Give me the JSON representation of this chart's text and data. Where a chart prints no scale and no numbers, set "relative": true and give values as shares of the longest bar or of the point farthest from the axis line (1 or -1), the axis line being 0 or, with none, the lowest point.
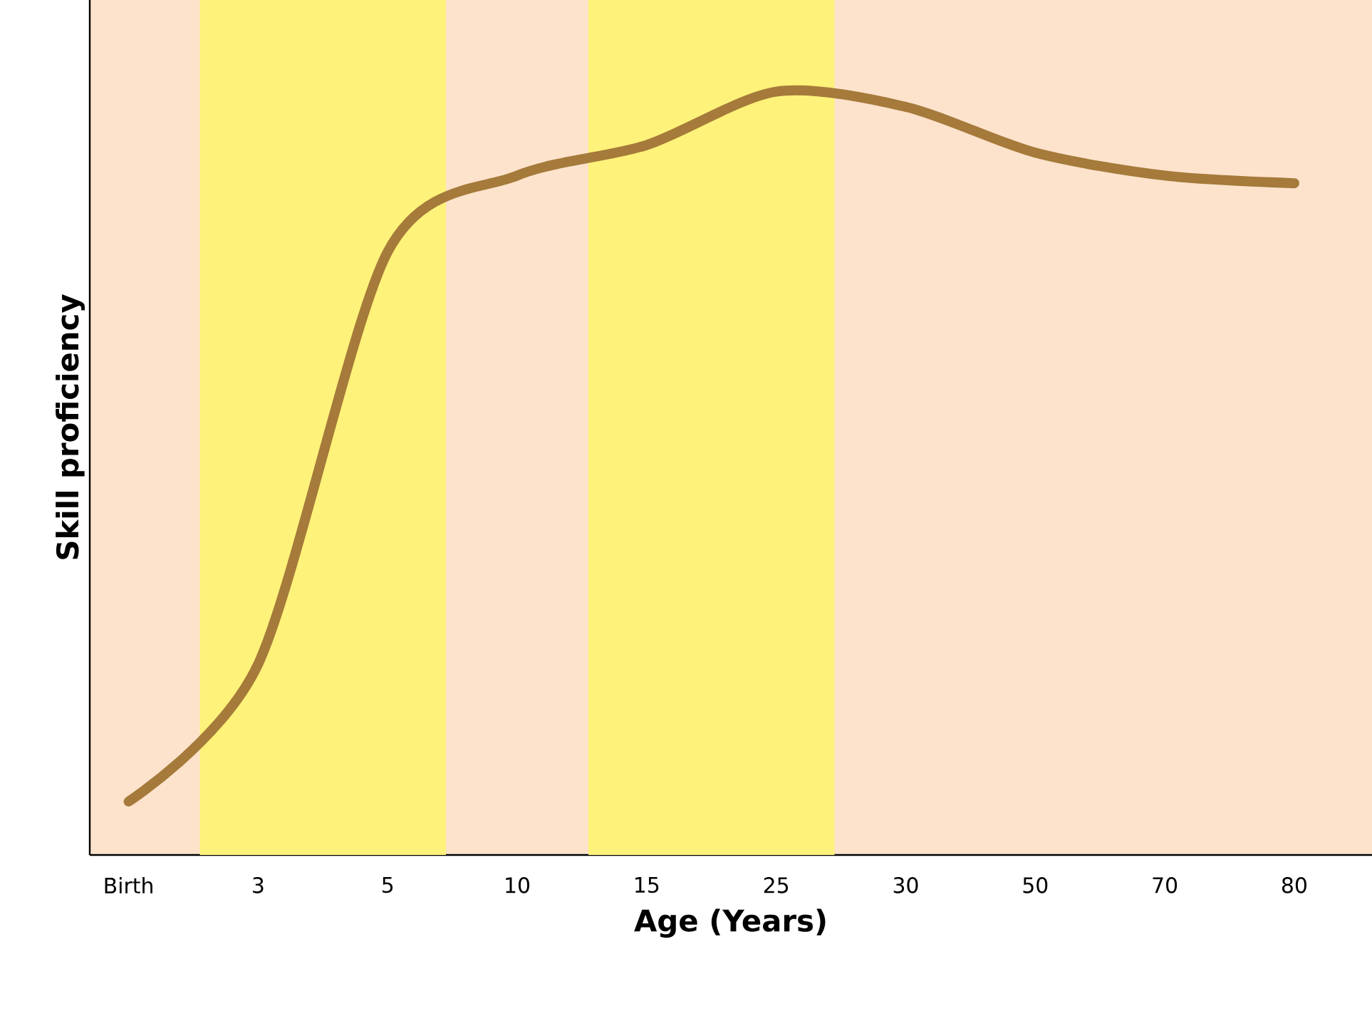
{
  "chart_data": {
    "type": "line",
    "xlabel": "Age (Years)",
    "ylabel": "Skill proficiency",
    "relative": true,
    "categories": [
      "Birth",
      "3",
      "5",
      "10",
      "15",
      "25",
      "30",
      "50",
      "70",
      "80"
    ],
    "series": [
      {
        "color": "#a57a3a",
        "values": [
          0.07,
          0.25,
          0.79,
          0.89,
          0.93,
          1.0,
          0.98,
          0.92,
          0.89,
          0.88
        ]
      }
    ],
    "bands": [
      {
        "axis": "x",
        "from": "3",
        "to": "5",
        "color": "#fff27a"
      },
      {
        "axis": "x",
        "from": "15",
        "to": "25",
        "color": "#fff27a"
      }
    ]
  }
}
